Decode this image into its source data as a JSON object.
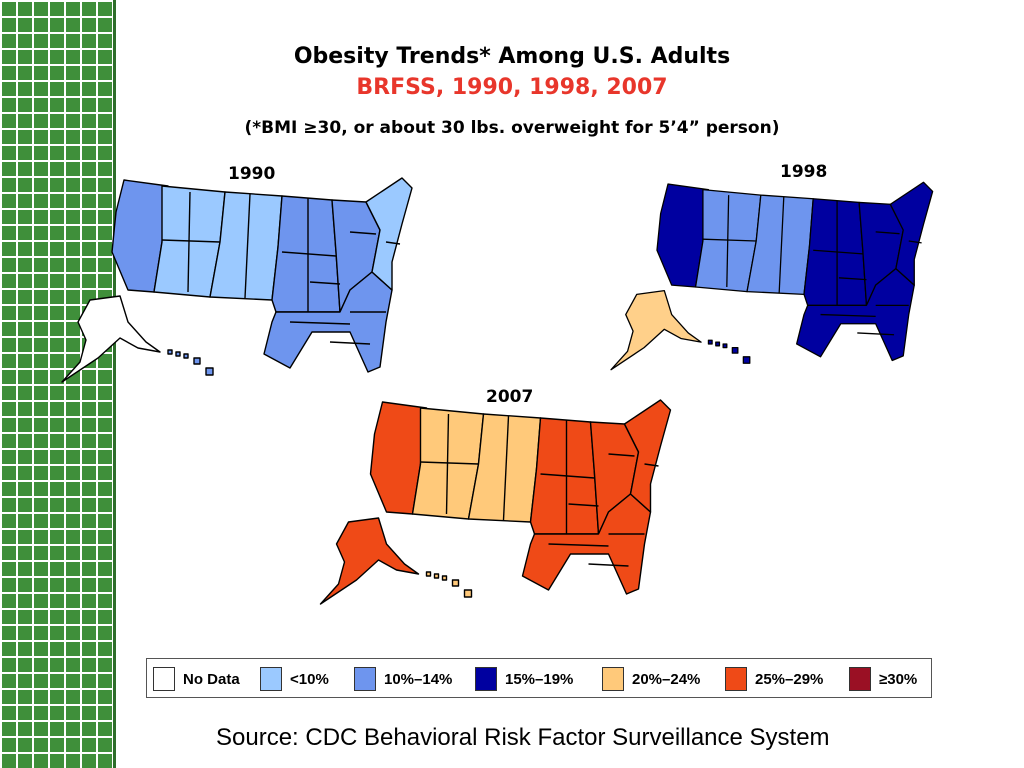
{
  "title": "Obesity Trends* Among U.S. Adults",
  "subtitle_red": "BRFSS, 1990, 1998, 2007",
  "footnote": "(*BMI ≥30, or about 30 lbs. overweight for 5’4” person)",
  "maps": [
    {
      "year": "1990",
      "fills": {
        "west": "#9bc9ff",
        "pacific": "#6e95ee",
        "mountain": "#9bc9ff",
        "plains": "#6e95ee",
        "midwest": "#6e95ee",
        "south": "#6e95ee",
        "northeast": "#9bc9ff",
        "alaska": "#ffffff",
        "hawaii": "#6e95ee"
      }
    },
    {
      "year": "1998",
      "fills": {
        "west": "#6e95ee",
        "pacific": "#0000a0",
        "mountain": "#6e95ee",
        "plains": "#0000a0",
        "midwest": "#0000a0",
        "south": "#0000a0",
        "northeast": "#0000a0",
        "alaska": "#ffd08a",
        "hawaii": "#0000a0"
      }
    },
    {
      "year": "2007",
      "fills": {
        "west": "#ffc97a",
        "pacific": "#ef4a17",
        "mountain": "#ffc97a",
        "plains": "#ef4a17",
        "midwest": "#ef4a17",
        "south": "#ef4a17",
        "northeast": "#ef4a17",
        "alaska": "#ef4a17",
        "hawaii": "#ffc97a"
      }
    }
  ],
  "legend": [
    {
      "label": "No Data",
      "color": "#ffffff"
    },
    {
      "label": "<10%",
      "color": "#9bc9ff"
    },
    {
      "label": "10%–14%",
      "color": "#6e95ee"
    },
    {
      "label": "15%–19%",
      "color": "#0000a0"
    },
    {
      "label": "20%–24%",
      "color": "#ffc97a"
    },
    {
      "label": "25%–29%",
      "color": "#ef4a17"
    },
    {
      "label": "≥30%",
      "color": "#9a1024"
    }
  ],
  "source": "Source: CDC Behavioral Risk Factor Surveillance System"
}
